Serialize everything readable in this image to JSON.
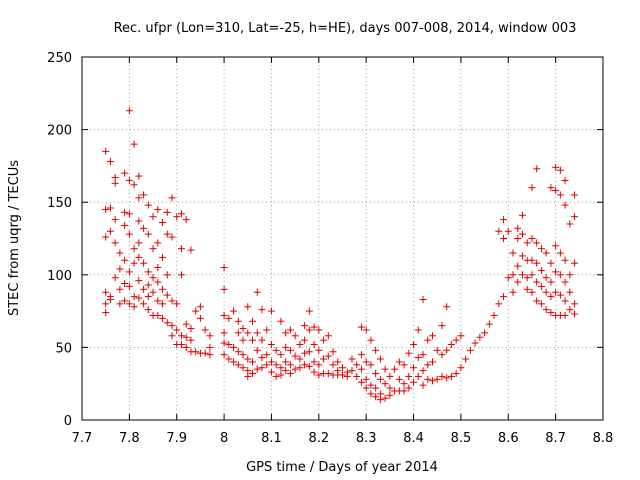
{
  "chart_data": {
    "type": "scatter",
    "title": "Rec. ufpr (Lon=310, Lat=-25, h=HE), days 007-008, 2014, window 003",
    "xlabel": "GPS time / Days of year 2014",
    "ylabel": "STEC from uqrg / TECUs",
    "xlim": [
      7.7,
      8.8
    ],
    "ylim": [
      0,
      250
    ],
    "x_ticks": [
      "7.7",
      "7.8",
      "7.9",
      "8",
      "8.1",
      "8.2",
      "8.3",
      "8.4",
      "8.5",
      "8.6",
      "8.7",
      "8.8"
    ],
    "y_ticks": [
      "0",
      "50",
      "100",
      "150",
      "200",
      "250"
    ],
    "grid": true,
    "marker": "+",
    "color": "#e00000",
    "points": [
      [
        7.75,
        185
      ],
      [
        7.76,
        178
      ],
      [
        7.75,
        145
      ],
      [
        7.76,
        146
      ],
      [
        7.75,
        126
      ],
      [
        7.76,
        130
      ],
      [
        7.75,
        88
      ],
      [
        7.76,
        85
      ],
      [
        7.75,
        80
      ],
      [
        7.75,
        74
      ],
      [
        7.76,
        83
      ],
      [
        7.77,
        163
      ],
      [
        7.77,
        167
      ],
      [
        7.77,
        138
      ],
      [
        7.77,
        122
      ],
      [
        7.77,
        98
      ],
      [
        7.78,
        115
      ],
      [
        7.78,
        104
      ],
      [
        7.78,
        90
      ],
      [
        7.78,
        80
      ],
      [
        7.79,
        170
      ],
      [
        7.79,
        143
      ],
      [
        7.79,
        134
      ],
      [
        7.79,
        110
      ],
      [
        7.79,
        94
      ],
      [
        7.79,
        82
      ],
      [
        7.8,
        213
      ],
      [
        7.8,
        165
      ],
      [
        7.8,
        142
      ],
      [
        7.8,
        128
      ],
      [
        7.8,
        102
      ],
      [
        7.8,
        92
      ],
      [
        7.8,
        80
      ],
      [
        7.81,
        190
      ],
      [
        7.81,
        162
      ],
      [
        7.81,
        118
      ],
      [
        7.81,
        108
      ],
      [
        7.81,
        85
      ],
      [
        7.81,
        78
      ],
      [
        7.82,
        168
      ],
      [
        7.82,
        153
      ],
      [
        7.82,
        137
      ],
      [
        7.82,
        122
      ],
      [
        7.82,
        112
      ],
      [
        7.82,
        96
      ],
      [
        7.82,
        84
      ],
      [
        7.83,
        155
      ],
      [
        7.83,
        132
      ],
      [
        7.83,
        108
      ],
      [
        7.83,
        90
      ],
      [
        7.83,
        80
      ],
      [
        7.84,
        148
      ],
      [
        7.84,
        128
      ],
      [
        7.84,
        102
      ],
      [
        7.84,
        93
      ],
      [
        7.84,
        85
      ],
      [
        7.84,
        76
      ],
      [
        7.85,
        140
      ],
      [
        7.85,
        118
      ],
      [
        7.85,
        98
      ],
      [
        7.85,
        88
      ],
      [
        7.85,
        72
      ],
      [
        7.86,
        145
      ],
      [
        7.86,
        122
      ],
      [
        7.86,
        105
      ],
      [
        7.86,
        95
      ],
      [
        7.86,
        82
      ],
      [
        7.86,
        72
      ],
      [
        7.87,
        136
      ],
      [
        7.87,
        112
      ],
      [
        7.87,
        90
      ],
      [
        7.87,
        80
      ],
      [
        7.87,
        70
      ],
      [
        7.88,
        143
      ],
      [
        7.88,
        128
      ],
      [
        7.88,
        100
      ],
      [
        7.88,
        86
      ],
      [
        7.88,
        67
      ],
      [
        7.89,
        153
      ],
      [
        7.89,
        126
      ],
      [
        7.89,
        82
      ],
      [
        7.89,
        65
      ],
      [
        7.89,
        58
      ],
      [
        7.9,
        140
      ],
      [
        7.9,
        80
      ],
      [
        7.9,
        62
      ],
      [
        7.9,
        52
      ],
      [
        7.91,
        142
      ],
      [
        7.91,
        118
      ],
      [
        7.91,
        100
      ],
      [
        7.91,
        58
      ],
      [
        7.91,
        52
      ],
      [
        7.92,
        138
      ],
      [
        7.92,
        66
      ],
      [
        7.92,
        57
      ],
      [
        7.92,
        50
      ],
      [
        7.93,
        117
      ],
      [
        7.93,
        63
      ],
      [
        7.93,
        55
      ],
      [
        7.93,
        47
      ],
      [
        7.94,
        75
      ],
      [
        7.94,
        47
      ],
      [
        7.95,
        78
      ],
      [
        7.95,
        70
      ],
      [
        7.95,
        46
      ],
      [
        7.96,
        62
      ],
      [
        7.96,
        46
      ],
      [
        7.97,
        58
      ],
      [
        7.97,
        50
      ],
      [
        7.97,
        45
      ],
      [
        8.0,
        105
      ],
      [
        8.0,
        90
      ],
      [
        8.0,
        72
      ],
      [
        8.0,
        60
      ],
      [
        8.0,
        53
      ],
      [
        8.0,
        45
      ],
      [
        8.01,
        70
      ],
      [
        8.01,
        52
      ],
      [
        8.01,
        42
      ],
      [
        8.02,
        75
      ],
      [
        8.02,
        50
      ],
      [
        8.02,
        40
      ],
      [
        8.03,
        68
      ],
      [
        8.03,
        60
      ],
      [
        8.03,
        47
      ],
      [
        8.03,
        38
      ],
      [
        8.04,
        63
      ],
      [
        8.04,
        55
      ],
      [
        8.04,
        45
      ],
      [
        8.04,
        36
      ],
      [
        8.05,
        78
      ],
      [
        8.05,
        60
      ],
      [
        8.05,
        42
      ],
      [
        8.05,
        34
      ],
      [
        8.05,
        30
      ],
      [
        8.06,
        68
      ],
      [
        8.06,
        55
      ],
      [
        8.06,
        40
      ],
      [
        8.06,
        32
      ],
      [
        8.07,
        88
      ],
      [
        8.07,
        60
      ],
      [
        8.07,
        48
      ],
      [
        8.07,
        35
      ],
      [
        8.08,
        76
      ],
      [
        8.08,
        55
      ],
      [
        8.08,
        43
      ],
      [
        8.08,
        36
      ],
      [
        8.09,
        62
      ],
      [
        8.09,
        45
      ],
      [
        8.09,
        38
      ],
      [
        8.1,
        75
      ],
      [
        8.1,
        52
      ],
      [
        8.1,
        40
      ],
      [
        8.1,
        33
      ],
      [
        8.11,
        48
      ],
      [
        8.11,
        38
      ],
      [
        8.11,
        30
      ],
      [
        8.12,
        68
      ],
      [
        8.12,
        45
      ],
      [
        8.12,
        36
      ],
      [
        8.12,
        31
      ],
      [
        8.13,
        60
      ],
      [
        8.13,
        50
      ],
      [
        8.13,
        40
      ],
      [
        8.13,
        34
      ],
      [
        8.14,
        62
      ],
      [
        8.14,
        48
      ],
      [
        8.14,
        38
      ],
      [
        8.14,
        32
      ],
      [
        8.15,
        58
      ],
      [
        8.15,
        44
      ],
      [
        8.15,
        35
      ],
      [
        8.16,
        52
      ],
      [
        8.16,
        42
      ],
      [
        8.16,
        36
      ],
      [
        8.17,
        65
      ],
      [
        8.17,
        55
      ],
      [
        8.17,
        46
      ],
      [
        8.17,
        38
      ],
      [
        8.18,
        75
      ],
      [
        8.18,
        62
      ],
      [
        8.18,
        47
      ],
      [
        8.18,
        37
      ],
      [
        8.19,
        64
      ],
      [
        8.19,
        52
      ],
      [
        8.19,
        40
      ],
      [
        8.19,
        33
      ],
      [
        8.2,
        62
      ],
      [
        8.2,
        48
      ],
      [
        8.2,
        38
      ],
      [
        8.2,
        31
      ],
      [
        8.21,
        55
      ],
      [
        8.21,
        42
      ],
      [
        8.21,
        32
      ],
      [
        8.22,
        58
      ],
      [
        8.22,
        44
      ],
      [
        8.22,
        32
      ],
      [
        8.23,
        47
      ],
      [
        8.23,
        38
      ],
      [
        8.23,
        31
      ],
      [
        8.24,
        40
      ],
      [
        8.24,
        34
      ],
      [
        8.24,
        31
      ],
      [
        8.25,
        36
      ],
      [
        8.25,
        31
      ],
      [
        8.26,
        33
      ],
      [
        8.26,
        30
      ],
      [
        8.27,
        42
      ],
      [
        8.27,
        34
      ],
      [
        8.28,
        38
      ],
      [
        8.28,
        30
      ],
      [
        8.29,
        64
      ],
      [
        8.29,
        45
      ],
      [
        8.29,
        35
      ],
      [
        8.29,
        26
      ],
      [
        8.3,
        62
      ],
      [
        8.3,
        40
      ],
      [
        8.3,
        28
      ],
      [
        8.3,
        22
      ],
      [
        8.31,
        55
      ],
      [
        8.31,
        38
      ],
      [
        8.31,
        24
      ],
      [
        8.31,
        18
      ],
      [
        8.32,
        48
      ],
      [
        8.32,
        32
      ],
      [
        8.32,
        22
      ],
      [
        8.32,
        16
      ],
      [
        8.33,
        42
      ],
      [
        8.33,
        28
      ],
      [
        8.33,
        18
      ],
      [
        8.33,
        14
      ],
      [
        8.34,
        35
      ],
      [
        8.34,
        25
      ],
      [
        8.34,
        15
      ],
      [
        8.35,
        30
      ],
      [
        8.35,
        22
      ],
      [
        8.35,
        17
      ],
      [
        8.36,
        35
      ],
      [
        8.36,
        20
      ],
      [
        8.37,
        40
      ],
      [
        8.37,
        28
      ],
      [
        8.37,
        20
      ],
      [
        8.38,
        38
      ],
      [
        8.38,
        25
      ],
      [
        8.38,
        20
      ],
      [
        8.39,
        46
      ],
      [
        8.39,
        30
      ],
      [
        8.39,
        22
      ],
      [
        8.4,
        52
      ],
      [
        8.4,
        36
      ],
      [
        8.4,
        26
      ],
      [
        8.41,
        62
      ],
      [
        8.41,
        43
      ],
      [
        8.41,
        30
      ],
      [
        8.42,
        83
      ],
      [
        8.42,
        45
      ],
      [
        8.42,
        34
      ],
      [
        8.42,
        24
      ],
      [
        8.43,
        55
      ],
      [
        8.43,
        38
      ],
      [
        8.43,
        28
      ],
      [
        8.44,
        58
      ],
      [
        8.44,
        40
      ],
      [
        8.44,
        27
      ],
      [
        8.45,
        48
      ],
      [
        8.45,
        28
      ],
      [
        8.46,
        65
      ],
      [
        8.46,
        45
      ],
      [
        8.46,
        30
      ],
      [
        8.47,
        78
      ],
      [
        8.47,
        48
      ],
      [
        8.47,
        29
      ],
      [
        8.48,
        52
      ],
      [
        8.48,
        30
      ],
      [
        8.49,
        55
      ],
      [
        8.49,
        32
      ],
      [
        8.5,
        58
      ],
      [
        8.5,
        36
      ],
      [
        8.51,
        42
      ],
      [
        8.52,
        48
      ],
      [
        8.53,
        53
      ],
      [
        8.54,
        57
      ],
      [
        8.55,
        60
      ],
      [
        8.56,
        66
      ],
      [
        8.57,
        72
      ],
      [
        8.58,
        80
      ],
      [
        8.58,
        130
      ],
      [
        8.59,
        85
      ],
      [
        8.59,
        138
      ],
      [
        8.59,
        125
      ],
      [
        8.6,
        98
      ],
      [
        8.6,
        130
      ],
      [
        8.61,
        115
      ],
      [
        8.61,
        100
      ],
      [
        8.61,
        88
      ],
      [
        8.62,
        132
      ],
      [
        8.62,
        125
      ],
      [
        8.62,
        106
      ],
      [
        8.62,
        95
      ],
      [
        8.63,
        141
      ],
      [
        8.63,
        128
      ],
      [
        8.63,
        113
      ],
      [
        8.63,
        100
      ],
      [
        8.64,
        122
      ],
      [
        8.64,
        110
      ],
      [
        8.64,
        98
      ],
      [
        8.64,
        90
      ],
      [
        8.65,
        160
      ],
      [
        8.65,
        125
      ],
      [
        8.65,
        110
      ],
      [
        8.65,
        100
      ],
      [
        8.65,
        88
      ],
      [
        8.66,
        173
      ],
      [
        8.66,
        122
      ],
      [
        8.66,
        108
      ],
      [
        8.66,
        95
      ],
      [
        8.66,
        82
      ],
      [
        8.67,
        118
      ],
      [
        8.67,
        103
      ],
      [
        8.67,
        92
      ],
      [
        8.67,
        80
      ],
      [
        8.68,
        115
      ],
      [
        8.68,
        98
      ],
      [
        8.68,
        88
      ],
      [
        8.68,
        76
      ],
      [
        8.69,
        160
      ],
      [
        8.69,
        108
      ],
      [
        8.69,
        95
      ],
      [
        8.69,
        85
      ],
      [
        8.69,
        74
      ],
      [
        8.7,
        174
      ],
      [
        8.7,
        158
      ],
      [
        8.7,
        120
      ],
      [
        8.7,
        102
      ],
      [
        8.7,
        88
      ],
      [
        8.7,
        72
      ],
      [
        8.71,
        172
      ],
      [
        8.71,
        155
      ],
      [
        8.71,
        115
      ],
      [
        8.71,
        100
      ],
      [
        8.71,
        86
      ],
      [
        8.71,
        72
      ],
      [
        8.72,
        165
      ],
      [
        8.72,
        148
      ],
      [
        8.72,
        110
      ],
      [
        8.72,
        95
      ],
      [
        8.72,
        82
      ],
      [
        8.72,
        72
      ],
      [
        8.73,
        135
      ],
      [
        8.73,
        100
      ],
      [
        8.73,
        88
      ],
      [
        8.73,
        76
      ],
      [
        8.74,
        155
      ],
      [
        8.74,
        140
      ],
      [
        8.74,
        108
      ],
      [
        8.74,
        80
      ],
      [
        8.74,
        73
      ]
    ]
  }
}
